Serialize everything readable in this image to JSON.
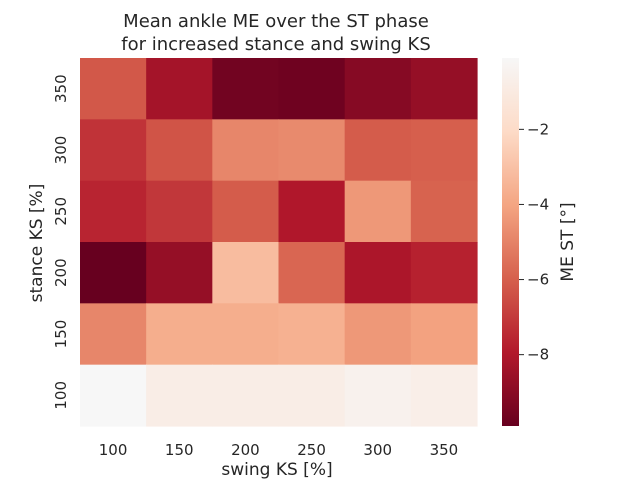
{
  "chart_data": {
    "type": "heatmap",
    "title_lines": [
      "Mean ankle ME over the ST phase",
      "for increased stance and swing KS"
    ],
    "xlabel": "swing KS [%]",
    "ylabel": "stance KS [%]",
    "x_categories": [
      "100",
      "150",
      "200",
      "250",
      "300",
      "350"
    ],
    "y_categories": [
      "350",
      "300",
      "250",
      "200",
      "150",
      "100"
    ],
    "values": [
      [
        -6.2,
        -8.3,
        -9.6,
        -9.7,
        -9.1,
        -8.7
      ],
      [
        -7.2,
        -6.3,
        -4.9,
        -4.8,
        -6.1,
        -6.0
      ],
      [
        -7.6,
        -7.1,
        -6.1,
        -8.0,
        -4.4,
        -5.9
      ],
      [
        -9.9,
        -8.7,
        -3.2,
        -5.8,
        -8.1,
        -7.7
      ],
      [
        -4.9,
        -3.7,
        -3.7,
        -3.6,
        -4.4,
        -4.1
      ],
      [
        -0.1,
        -0.8,
        -0.8,
        -0.8,
        -0.5,
        -0.7
      ]
    ],
    "colorbar": {
      "label": "ME ST [°]",
      "ticks": [
        -2,
        -4,
        -6,
        -8
      ],
      "tick_labels": [
        "−2",
        "−4",
        "−6",
        "−8"
      ],
      "vmin": -9.9,
      "vmax": -0.1,
      "colormap": "RdBu-red-half",
      "color_stops": [
        "#67001f",
        "#b2182b",
        "#d6604d",
        "#f4a582",
        "#fddbc7",
        "#f7f7f7"
      ]
    },
    "grid": false
  }
}
